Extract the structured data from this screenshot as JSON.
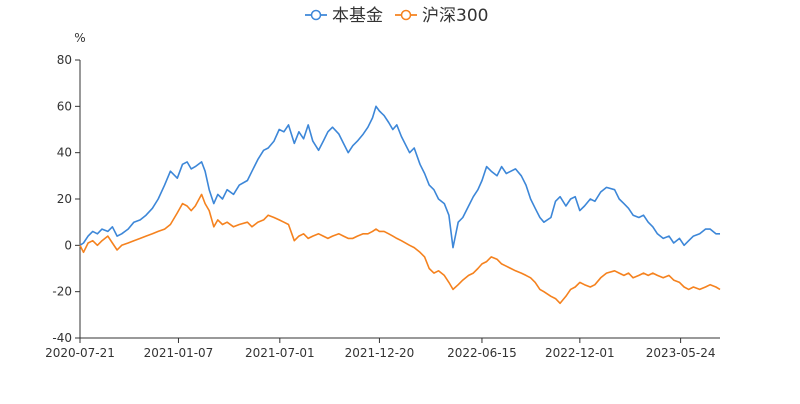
{
  "chart_data": {
    "type": "line",
    "ylabel": "%",
    "ylim": [
      -40,
      80
    ],
    "yticks": [
      -40,
      -20,
      0,
      20,
      40,
      60,
      80
    ],
    "xlim": [
      "2020-07-21",
      "2023-07-31"
    ],
    "xticks": [
      "2020-07-21",
      "2021-01-07",
      "2021-07-01",
      "2021-12-20",
      "2022-06-15",
      "2022-12-01",
      "2023-05-24"
    ],
    "legend_position": "top-center",
    "series": [
      {
        "name": "本基金",
        "color": "#3d87d8",
        "points": [
          [
            "2020-07-21",
            0
          ],
          [
            "2020-07-27",
            1
          ],
          [
            "2020-08-04",
            4
          ],
          [
            "2020-08-12",
            6
          ],
          [
            "2020-08-20",
            5
          ],
          [
            "2020-08-28",
            7
          ],
          [
            "2020-09-07",
            6
          ],
          [
            "2020-09-15",
            8
          ],
          [
            "2020-09-23",
            4
          ],
          [
            "2020-10-01",
            5
          ],
          [
            "2020-10-12",
            7
          ],
          [
            "2020-10-22",
            10
          ],
          [
            "2020-11-02",
            11
          ],
          [
            "2020-11-12",
            13
          ],
          [
            "2020-11-23",
            16
          ],
          [
            "2020-12-03",
            20
          ],
          [
            "2020-12-14",
            26
          ],
          [
            "2020-12-24",
            32
          ],
          [
            "2021-01-05",
            29
          ],
          [
            "2021-01-14",
            35
          ],
          [
            "2021-01-22",
            36
          ],
          [
            "2021-01-29",
            33
          ],
          [
            "2021-02-05",
            34
          ],
          [
            "2021-02-16",
            36
          ],
          [
            "2021-02-22",
            32
          ],
          [
            "2021-03-01",
            24
          ],
          [
            "2021-03-09",
            18
          ],
          [
            "2021-03-16",
            22
          ],
          [
            "2021-03-24",
            20
          ],
          [
            "2021-04-01",
            24
          ],
          [
            "2021-04-12",
            22
          ],
          [
            "2021-04-22",
            26
          ],
          [
            "2021-05-06",
            28
          ],
          [
            "2021-05-14",
            32
          ],
          [
            "2021-05-24",
            37
          ],
          [
            "2021-06-03",
            41
          ],
          [
            "2021-06-11",
            42
          ],
          [
            "2021-06-21",
            45
          ],
          [
            "2021-06-30",
            50
          ],
          [
            "2021-07-08",
            49
          ],
          [
            "2021-07-16",
            52
          ],
          [
            "2021-07-26",
            44
          ],
          [
            "2021-08-03",
            49
          ],
          [
            "2021-08-11",
            46
          ],
          [
            "2021-08-19",
            52
          ],
          [
            "2021-08-27",
            45
          ],
          [
            "2021-09-06",
            41
          ],
          [
            "2021-09-14",
            45
          ],
          [
            "2021-09-22",
            49
          ],
          [
            "2021-09-30",
            51
          ],
          [
            "2021-10-11",
            48
          ],
          [
            "2021-10-19",
            44
          ],
          [
            "2021-10-27",
            40
          ],
          [
            "2021-11-04",
            43
          ],
          [
            "2021-11-12",
            45
          ],
          [
            "2021-11-22",
            48
          ],
          [
            "2021-11-30",
            51
          ],
          [
            "2021-12-08",
            55
          ],
          [
            "2021-12-14",
            60
          ],
          [
            "2021-12-20",
            58
          ],
          [
            "2021-12-28",
            56
          ],
          [
            "2022-01-05",
            53
          ],
          [
            "2022-01-12",
            50
          ],
          [
            "2022-01-19",
            52
          ],
          [
            "2022-01-27",
            47
          ],
          [
            "2022-02-10",
            40
          ],
          [
            "2022-02-18",
            42
          ],
          [
            "2022-02-28",
            35
          ],
          [
            "2022-03-08",
            31
          ],
          [
            "2022-03-16",
            26
          ],
          [
            "2022-03-24",
            24
          ],
          [
            "2022-04-01",
            20
          ],
          [
            "2022-04-11",
            18
          ],
          [
            "2022-04-19",
            13
          ],
          [
            "2022-04-26",
            -1
          ],
          [
            "2022-05-05",
            10
          ],
          [
            "2022-05-13",
            12
          ],
          [
            "2022-05-23",
            17
          ],
          [
            "2022-05-31",
            21
          ],
          [
            "2022-06-08",
            24
          ],
          [
            "2022-06-15",
            28
          ],
          [
            "2022-06-23",
            34
          ],
          [
            "2022-07-01",
            32
          ],
          [
            "2022-07-11",
            30
          ],
          [
            "2022-07-19",
            34
          ],
          [
            "2022-07-27",
            31
          ],
          [
            "2022-08-04",
            32
          ],
          [
            "2022-08-12",
            33
          ],
          [
            "2022-08-22",
            30
          ],
          [
            "2022-08-30",
            26
          ],
          [
            "2022-09-07",
            20
          ],
          [
            "2022-09-15",
            16
          ],
          [
            "2022-09-23",
            12
          ],
          [
            "2022-09-30",
            10
          ],
          [
            "2022-10-12",
            12
          ],
          [
            "2022-10-20",
            19
          ],
          [
            "2022-10-28",
            21
          ],
          [
            "2022-11-07",
            17
          ],
          [
            "2022-11-15",
            20
          ],
          [
            "2022-11-23",
            21
          ],
          [
            "2022-12-01",
            15
          ],
          [
            "2022-12-09",
            17
          ],
          [
            "2022-12-19",
            20
          ],
          [
            "2022-12-27",
            19
          ],
          [
            "2023-01-06",
            23
          ],
          [
            "2023-01-16",
            25
          ],
          [
            "2023-01-30",
            24
          ],
          [
            "2023-02-07",
            20
          ],
          [
            "2023-02-15",
            18
          ],
          [
            "2023-02-23",
            16
          ],
          [
            "2023-03-03",
            13
          ],
          [
            "2023-03-13",
            12
          ],
          [
            "2023-03-21",
            13
          ],
          [
            "2023-03-29",
            10
          ],
          [
            "2023-04-06",
            8
          ],
          [
            "2023-04-14",
            5
          ],
          [
            "2023-04-24",
            3
          ],
          [
            "2023-05-04",
            4
          ],
          [
            "2023-05-12",
            1
          ],
          [
            "2023-05-22",
            3
          ],
          [
            "2023-05-30",
            0
          ],
          [
            "2023-06-07",
            2
          ],
          [
            "2023-06-15",
            4
          ],
          [
            "2023-06-26",
            5
          ],
          [
            "2023-07-06",
            7
          ],
          [
            "2023-07-14",
            7
          ],
          [
            "2023-07-24",
            5
          ],
          [
            "2023-07-31",
            5
          ]
        ]
      },
      {
        "name": "沪深300",
        "color": "#f5821f",
        "points": [
          [
            "2020-07-21",
            0
          ],
          [
            "2020-07-27",
            -3
          ],
          [
            "2020-08-04",
            1
          ],
          [
            "2020-08-12",
            2
          ],
          [
            "2020-08-20",
            0
          ],
          [
            "2020-08-28",
            2
          ],
          [
            "2020-09-07",
            4
          ],
          [
            "2020-09-15",
            1
          ],
          [
            "2020-09-23",
            -2
          ],
          [
            "2020-10-01",
            0
          ],
          [
            "2020-10-12",
            1
          ],
          [
            "2020-10-22",
            2
          ],
          [
            "2020-11-02",
            3
          ],
          [
            "2020-11-12",
            4
          ],
          [
            "2020-11-23",
            5
          ],
          [
            "2020-12-03",
            6
          ],
          [
            "2020-12-14",
            7
          ],
          [
            "2020-12-24",
            9
          ],
          [
            "2021-01-05",
            14
          ],
          [
            "2021-01-14",
            18
          ],
          [
            "2021-01-22",
            17
          ],
          [
            "2021-01-29",
            15
          ],
          [
            "2021-02-05",
            17
          ],
          [
            "2021-02-16",
            22
          ],
          [
            "2021-02-22",
            18
          ],
          [
            "2021-03-01",
            15
          ],
          [
            "2021-03-09",
            8
          ],
          [
            "2021-03-16",
            11
          ],
          [
            "2021-03-24",
            9
          ],
          [
            "2021-04-01",
            10
          ],
          [
            "2021-04-12",
            8
          ],
          [
            "2021-04-22",
            9
          ],
          [
            "2021-05-06",
            10
          ],
          [
            "2021-05-14",
            8
          ],
          [
            "2021-05-24",
            10
          ],
          [
            "2021-06-03",
            11
          ],
          [
            "2021-06-11",
            13
          ],
          [
            "2021-06-21",
            12
          ],
          [
            "2021-06-30",
            11
          ],
          [
            "2021-07-08",
            10
          ],
          [
            "2021-07-16",
            9
          ],
          [
            "2021-07-26",
            2
          ],
          [
            "2021-08-03",
            4
          ],
          [
            "2021-08-11",
            5
          ],
          [
            "2021-08-19",
            3
          ],
          [
            "2021-08-27",
            4
          ],
          [
            "2021-09-06",
            5
          ],
          [
            "2021-09-14",
            4
          ],
          [
            "2021-09-22",
            3
          ],
          [
            "2021-09-30",
            4
          ],
          [
            "2021-10-11",
            5
          ],
          [
            "2021-10-19",
            4
          ],
          [
            "2021-10-27",
            3
          ],
          [
            "2021-11-04",
            3
          ],
          [
            "2021-11-12",
            4
          ],
          [
            "2021-11-22",
            5
          ],
          [
            "2021-11-30",
            5
          ],
          [
            "2021-12-08",
            6
          ],
          [
            "2021-12-14",
            7
          ],
          [
            "2021-12-20",
            6
          ],
          [
            "2021-12-28",
            6
          ],
          [
            "2022-01-05",
            5
          ],
          [
            "2022-01-12",
            4
          ],
          [
            "2022-01-19",
            3
          ],
          [
            "2022-01-27",
            2
          ],
          [
            "2022-02-10",
            0
          ],
          [
            "2022-02-18",
            -1
          ],
          [
            "2022-02-28",
            -3
          ],
          [
            "2022-03-08",
            -5
          ],
          [
            "2022-03-16",
            -10
          ],
          [
            "2022-03-24",
            -12
          ],
          [
            "2022-04-01",
            -11
          ],
          [
            "2022-04-11",
            -13
          ],
          [
            "2022-04-19",
            -16
          ],
          [
            "2022-04-26",
            -19
          ],
          [
            "2022-05-05",
            -17
          ],
          [
            "2022-05-13",
            -15
          ],
          [
            "2022-05-23",
            -13
          ],
          [
            "2022-05-31",
            -12
          ],
          [
            "2022-06-08",
            -10
          ],
          [
            "2022-06-15",
            -8
          ],
          [
            "2022-06-23",
            -7
          ],
          [
            "2022-07-01",
            -5
          ],
          [
            "2022-07-11",
            -6
          ],
          [
            "2022-07-19",
            -8
          ],
          [
            "2022-07-27",
            -9
          ],
          [
            "2022-08-04",
            -10
          ],
          [
            "2022-08-12",
            -11
          ],
          [
            "2022-08-22",
            -12
          ],
          [
            "2022-08-30",
            -13
          ],
          [
            "2022-09-07",
            -14
          ],
          [
            "2022-09-15",
            -16
          ],
          [
            "2022-09-23",
            -19
          ],
          [
            "2022-09-30",
            -20
          ],
          [
            "2022-10-12",
            -22
          ],
          [
            "2022-10-20",
            -23
          ],
          [
            "2022-10-28",
            -25
          ],
          [
            "2022-11-07",
            -22
          ],
          [
            "2022-11-15",
            -19
          ],
          [
            "2022-11-23",
            -18
          ],
          [
            "2022-12-01",
            -16
          ],
          [
            "2022-12-09",
            -17
          ],
          [
            "2022-12-19",
            -18
          ],
          [
            "2022-12-27",
            -17
          ],
          [
            "2023-01-06",
            -14
          ],
          [
            "2023-01-16",
            -12
          ],
          [
            "2023-01-30",
            -11
          ],
          [
            "2023-02-07",
            -12
          ],
          [
            "2023-02-15",
            -13
          ],
          [
            "2023-02-23",
            -12
          ],
          [
            "2023-03-03",
            -14
          ],
          [
            "2023-03-13",
            -13
          ],
          [
            "2023-03-21",
            -12
          ],
          [
            "2023-03-29",
            -13
          ],
          [
            "2023-04-06",
            -12
          ],
          [
            "2023-04-14",
            -13
          ],
          [
            "2023-04-24",
            -14
          ],
          [
            "2023-05-04",
            -13
          ],
          [
            "2023-05-12",
            -15
          ],
          [
            "2023-05-22",
            -16
          ],
          [
            "2023-05-30",
            -18
          ],
          [
            "2023-06-07",
            -19
          ],
          [
            "2023-06-15",
            -18
          ],
          [
            "2023-06-26",
            -19
          ],
          [
            "2023-07-06",
            -18
          ],
          [
            "2023-07-14",
            -17
          ],
          [
            "2023-07-24",
            -18
          ],
          [
            "2023-07-31",
            -19
          ]
        ]
      }
    ]
  }
}
